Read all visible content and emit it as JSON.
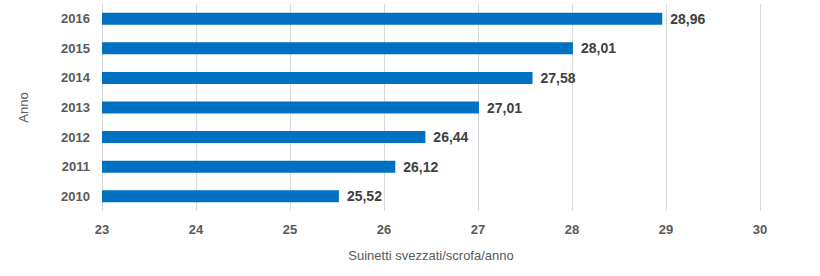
{
  "chart_data": {
    "type": "bar",
    "orientation": "horizontal",
    "x_label": "Suinetti svezzati/scrofa/anno",
    "y_label": "Anno",
    "categories": [
      "2010",
      "2011",
      "2012",
      "2013",
      "2014",
      "2015",
      "2016"
    ],
    "values": [
      25.52,
      26.12,
      26.44,
      27.01,
      27.58,
      28.01,
      28.96
    ],
    "value_labels": [
      "25,52",
      "26,12",
      "26,44",
      "27,01",
      "27,58",
      "28,01",
      "28,96"
    ],
    "color": "#0070c0",
    "xlim": [
      23,
      30
    ],
    "xticks": [
      23,
      24,
      25,
      26,
      27,
      28,
      29,
      30
    ],
    "grid": true,
    "data_labels": true
  }
}
